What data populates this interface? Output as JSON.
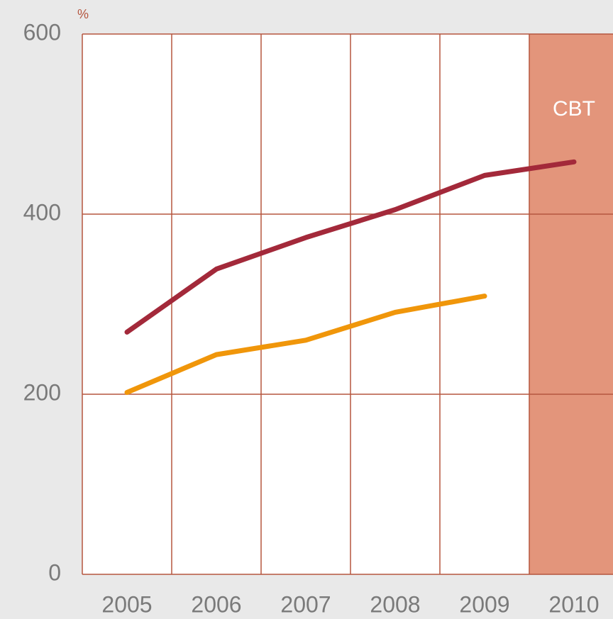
{
  "chart_data": {
    "type": "line",
    "unit_label": "%",
    "categories": [
      "2005",
      "2006",
      "2007",
      "2008",
      "2009",
      "2010"
    ],
    "series": [
      {
        "color": "#a3293a",
        "values": [
          269,
          339,
          374,
          405,
          443,
          458
        ]
      },
      {
        "color": "#f0960a",
        "values": [
          202,
          244,
          260,
          291,
          309,
          null
        ]
      }
    ],
    "ylim": [
      0,
      600
    ],
    "yticks": [
      0,
      200,
      400,
      600
    ],
    "grid": true,
    "highlight": "2010",
    "highlight_color": "#e3957b",
    "highlight_label": "CBT"
  }
}
